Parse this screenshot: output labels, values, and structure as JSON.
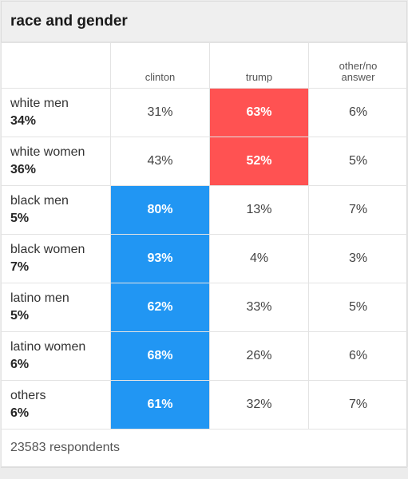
{
  "title": "race and gender",
  "columns": [
    "clinton",
    "trump",
    "other/no answer"
  ],
  "colors": {
    "clinton": "#2196f3",
    "trump": "#ff5252"
  },
  "footer": "23583 respondents",
  "chart_data": {
    "type": "table",
    "title": "race and gender",
    "columns": [
      "clinton",
      "trump",
      "other/no answer"
    ],
    "rows": [
      {
        "label": "white men",
        "share": "34%",
        "values": [
          "31%",
          "63%",
          "6%"
        ],
        "winner": 1
      },
      {
        "label": "white women",
        "share": "36%",
        "values": [
          "43%",
          "52%",
          "5%"
        ],
        "winner": 1
      },
      {
        "label": "black men",
        "share": "5%",
        "values": [
          "80%",
          "13%",
          "7%"
        ],
        "winner": 0
      },
      {
        "label": "black women",
        "share": "7%",
        "values": [
          "93%",
          "4%",
          "3%"
        ],
        "winner": 0
      },
      {
        "label": "latino men",
        "share": "5%",
        "values": [
          "62%",
          "33%",
          "5%"
        ],
        "winner": 0
      },
      {
        "label": "latino women",
        "share": "6%",
        "values": [
          "68%",
          "26%",
          "6%"
        ],
        "winner": 0
      },
      {
        "label": "others",
        "share": "6%",
        "values": [
          "61%",
          "32%",
          "7%"
        ],
        "winner": 0
      }
    ],
    "footer": "23583 respondents"
  }
}
